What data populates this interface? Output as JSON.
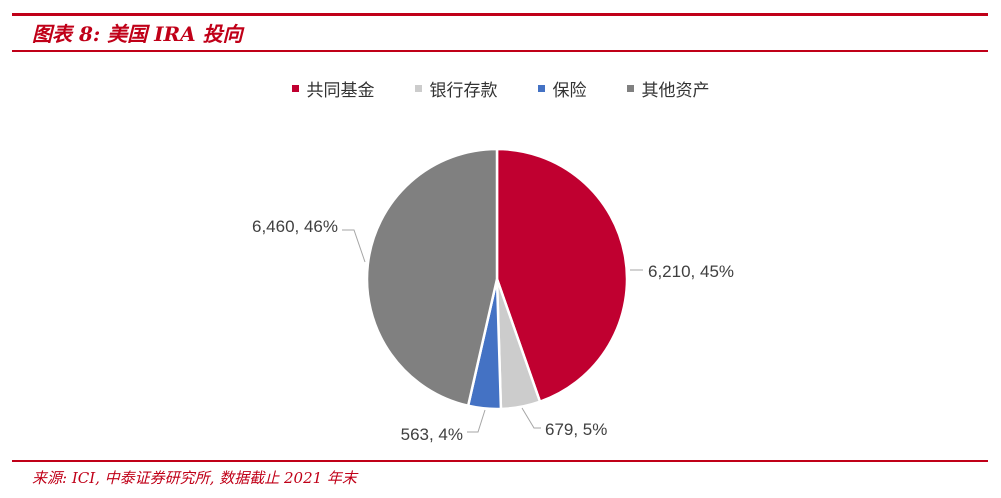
{
  "header": {
    "title": "图表 8: 美国 IRA 投向"
  },
  "legend": [
    {
      "label": "共同基金",
      "color": "#c00030"
    },
    {
      "label": "银行存款",
      "color": "#cccccc"
    },
    {
      "label": "保险",
      "color": "#4472c4"
    },
    {
      "label": "其他资产",
      "color": "#808080"
    }
  ],
  "chart_data": {
    "type": "pie",
    "title": "",
    "slices": [
      {
        "label": "共同基金",
        "value": 6210,
        "percent": 45,
        "data_label": "6,210, 45%",
        "color": "#c00030"
      },
      {
        "label": "银行存款",
        "value": 679,
        "percent": 5,
        "data_label": "679, 5%",
        "color": "#cccccc"
      },
      {
        "label": "保险",
        "value": 563,
        "percent": 4,
        "data_label": "563, 4%",
        "color": "#4472c4"
      },
      {
        "label": "其他资产",
        "value": 6460,
        "percent": 46,
        "data_label": "6,460, 46%",
        "color": "#808080"
      }
    ],
    "legend_position": "top"
  },
  "footer": {
    "source": "来源: ICI, 中泰证券研究所, 数据截止 2021 年末"
  }
}
